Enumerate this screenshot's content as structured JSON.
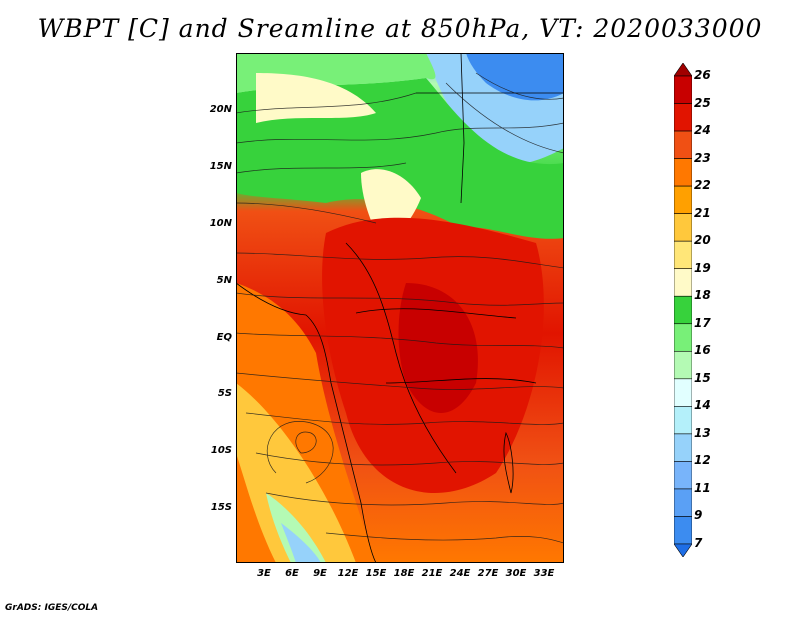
{
  "title": "WBPT [C] and Sreamline at 850hPa, VT: 2020033000",
  "footer": "GrADS: IGES/COLA",
  "lat_labels": [
    "20N",
    "15N",
    "10N",
    "5N",
    "EQ",
    "5S",
    "10S",
    "15S"
  ],
  "lon_labels": [
    "3E",
    "6E",
    "9E",
    "12E",
    "15E",
    "18E",
    "21E",
    "24E",
    "27E",
    "30E",
    "33E"
  ],
  "colorbar": {
    "labels": [
      "7",
      "9",
      "11",
      "12",
      "13",
      "14",
      "15",
      "16",
      "17",
      "18",
      "19",
      "20",
      "21",
      "22",
      "23",
      "24",
      "25",
      "26"
    ],
    "colors": [
      "#1e6ee6",
      "#3c8cf0",
      "#5aa0f5",
      "#78b4fa",
      "#96d2fa",
      "#b4f0fa",
      "#e1ffff",
      "#b4fab4",
      "#78f078",
      "#37d23c",
      "#fffac8",
      "#ffe678",
      "#ffc83c",
      "#ffa000",
      "#ff7800",
      "#f05014",
      "#e11400",
      "#c80000",
      "#a00000"
    ]
  },
  "map": {
    "region": "Central Africa",
    "lon_range": [
      0,
      35
    ],
    "lat_range": [
      -20,
      24
    ],
    "level": "850hPa",
    "variable": "WBPT"
  }
}
